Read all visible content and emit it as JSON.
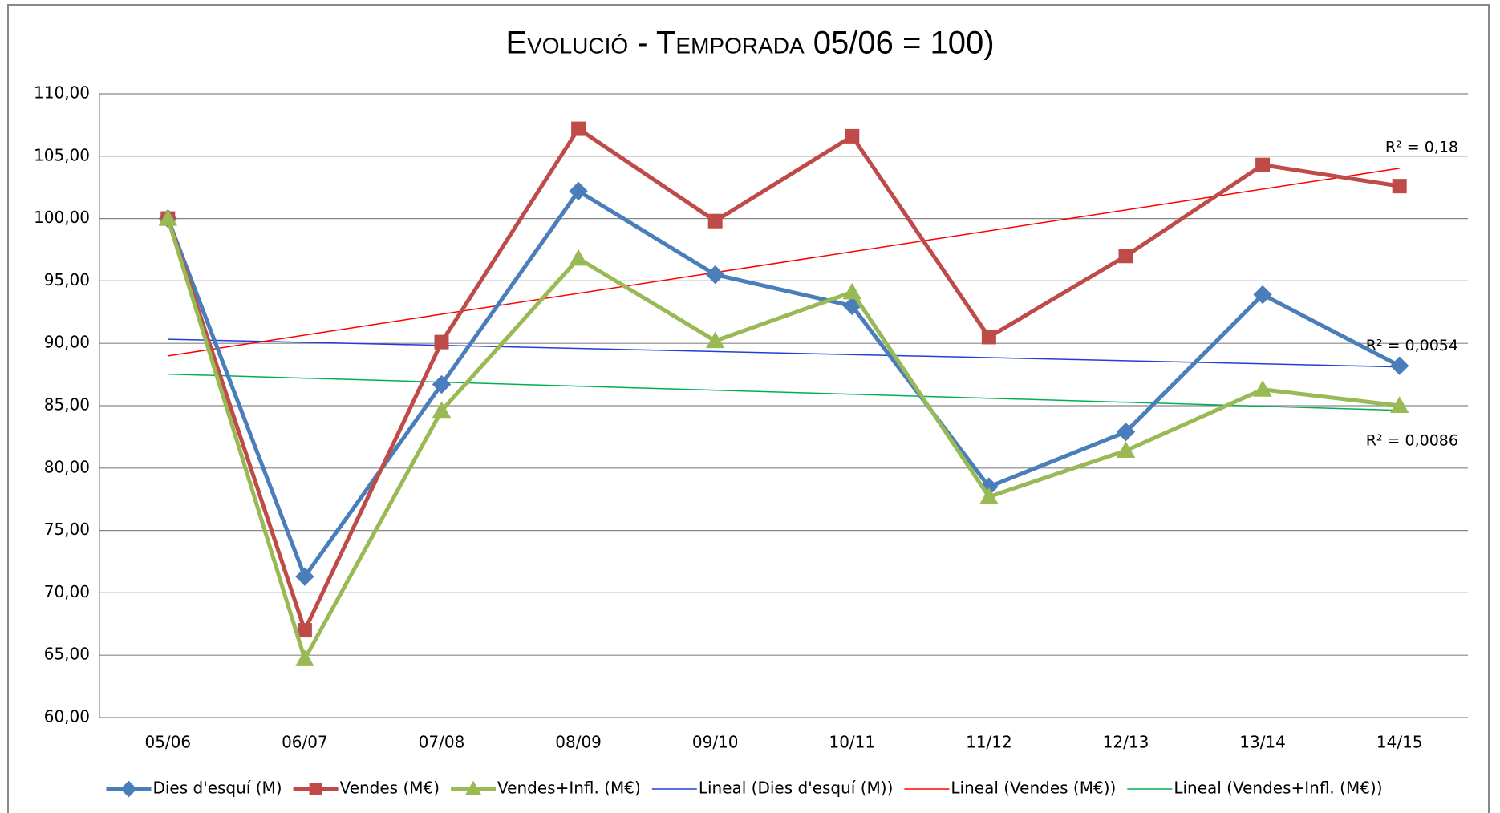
{
  "chart_data": {
    "type": "line",
    "title": "Evolució - Temporada 05/06 = 100)",
    "categories": [
      "05/06",
      "06/07",
      "07/08",
      "08/09",
      "09/10",
      "10/11",
      "11/12",
      "12/13",
      "13/14",
      "14/15"
    ],
    "series": [
      {
        "name": "Dies d'esquí (M)",
        "color": "#4a7ebb",
        "marker": "diamond",
        "values": [
          100,
          71.3,
          86.7,
          102.2,
          95.5,
          93.0,
          78.5,
          82.9,
          93.9,
          88.2
        ]
      },
      {
        "name": "Vendes (M€)",
        "color": "#be4b48",
        "marker": "square",
        "values": [
          100,
          67.0,
          90.1,
          107.2,
          99.8,
          106.6,
          90.5,
          97.0,
          104.3,
          102.6
        ]
      },
      {
        "name": "Vendes+Infl. (M€)",
        "color": "#98b954",
        "marker": "triangle",
        "values": [
          100,
          64.7,
          84.6,
          96.8,
          90.2,
          94.1,
          77.7,
          81.4,
          86.3,
          85.0
        ]
      }
    ],
    "trendlines": [
      {
        "name": "Lineal (Dies d'esquí (M))",
        "series": 0,
        "color": "#1f3fd6",
        "r2_label": "R² = 0,0054"
      },
      {
        "name": "Lineal (Vendes (M€))",
        "series": 1,
        "color": "#ff0000",
        "r2_label": "R² = 0,18"
      },
      {
        "name": "Lineal (Vendes+Infl. (M€))",
        "series": 2,
        "color": "#00b050",
        "r2_label": "R² = 0,0086"
      }
    ],
    "ylim": [
      60,
      110
    ],
    "yticks": [
      {
        "value": 60,
        "label": "60,00"
      },
      {
        "value": 65,
        "label": "65,00"
      },
      {
        "value": 70,
        "label": "70,00"
      },
      {
        "value": 75,
        "label": "75,00"
      },
      {
        "value": 80,
        "label": "80,00"
      },
      {
        "value": 85,
        "label": "85,00"
      },
      {
        "value": 90,
        "label": "90,00"
      },
      {
        "value": 95,
        "label": "95,00"
      },
      {
        "value": 100,
        "label": "100,00"
      },
      {
        "value": 105,
        "label": "105,00"
      },
      {
        "value": 110,
        "label": "110,00"
      }
    ],
    "grid": true,
    "legend": "bottom"
  }
}
